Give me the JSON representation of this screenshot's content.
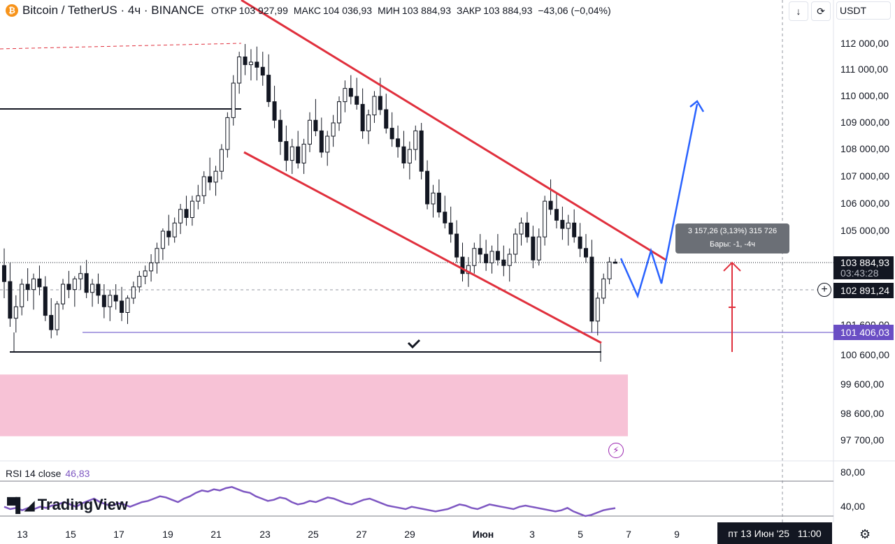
{
  "header": {
    "title": "Bitcoin / TetherUS · 4ч · BINANCE",
    "open_label": "ОТКР",
    "open_value": "103 927,99",
    "high_label": "МАКС",
    "high_value": "104 036,93",
    "low_label": "МИН",
    "low_value": "103 884,93",
    "close_label": "ЗАКР",
    "close_value": "103 884,93",
    "change": "−43,06 (−0,04%)"
  },
  "toolbar": {
    "currency": "USDT"
  },
  "price_axis": {
    "labels": [
      "112 000,00",
      "111 000,00",
      "110 000,00",
      "109 000,00",
      "108 000,00",
      "107 000,00",
      "106 000,00",
      "105 000,00",
      "100 600,00",
      "99 600,00",
      "98 600,00",
      "97 700,00"
    ],
    "current_price": "103 884,93",
    "countdown": "03:43:28",
    "crosshair_price": "102 891,24",
    "level_price": "101 406,03",
    "level_hidden": "101 600,00"
  },
  "measure_tooltip": {
    "line1": "3 157,26 (3,13%) 315 726",
    "line2": "Бары: -1, -4ч"
  },
  "rsi": {
    "label": "RSI 14 close",
    "value": "46,83",
    "axis": [
      "80,00",
      "40,00"
    ]
  },
  "time_axis": {
    "labels": [
      "13",
      "15",
      "17",
      "19",
      "21",
      "23",
      "25",
      "27",
      "29",
      "Июн",
      "3",
      "5",
      "7",
      "9"
    ],
    "crosshair_date": "пт 13 Июн '25   11:00"
  },
  "brand": {
    "name": "TradingView"
  },
  "colors": {
    "up": "#131722",
    "down": "#131722",
    "channel": "#e0303d",
    "projection": "#2962ff",
    "zone": "#f7c2d6",
    "rsi": "#7e57c2",
    "level": "#5b45c6"
  },
  "chart_data": {
    "type": "candlestick",
    "symbol": "BTCUSDT",
    "timeframe": "4h",
    "ylim": [
      97500,
      112600
    ],
    "x_range": [
      "May 12",
      "Jun 10"
    ],
    "candles": [
      [
        103800,
        104400,
        102600,
        103200
      ],
      [
        103200,
        103900,
        101600,
        101900
      ],
      [
        101900,
        102700,
        101400,
        102300
      ],
      [
        102300,
        103300,
        102000,
        103100
      ],
      [
        103100,
        103700,
        102500,
        102900
      ],
      [
        102900,
        103500,
        102200,
        103300
      ],
      [
        103300,
        103800,
        102700,
        103000
      ],
      [
        103000,
        103400,
        101800,
        102000
      ],
      [
        102000,
        102600,
        101200,
        101500
      ],
      [
        101500,
        102500,
        101300,
        102400
      ],
      [
        102400,
        103300,
        102200,
        103100
      ],
      [
        103100,
        103600,
        102600,
        102900
      ],
      [
        102900,
        103400,
        102300,
        103300
      ],
      [
        103300,
        103800,
        102900,
        103500
      ],
      [
        103500,
        104000,
        102600,
        102800
      ],
      [
        102800,
        103300,
        102300,
        103100
      ],
      [
        103100,
        103500,
        102400,
        102700
      ],
      [
        102700,
        103100,
        101900,
        102300
      ],
      [
        102300,
        102900,
        101800,
        102700
      ],
      [
        102700,
        103100,
        102200,
        102500
      ],
      [
        102500,
        103000,
        101800,
        102100
      ],
      [
        102100,
        102700,
        101700,
        102600
      ],
      [
        102600,
        103200,
        102400,
        103000
      ],
      [
        103000,
        103600,
        102800,
        103400
      ],
      [
        103400,
        103800,
        103100,
        103600
      ],
      [
        103600,
        104200,
        103200,
        103900
      ],
      [
        103900,
        104600,
        103500,
        104400
      ],
      [
        104400,
        105100,
        104000,
        105000
      ],
      [
        105000,
        105600,
        104500,
        104800
      ],
      [
        104800,
        105500,
        104600,
        105300
      ],
      [
        105300,
        106000,
        104900,
        105800
      ],
      [
        105800,
        106300,
        105200,
        105500
      ],
      [
        105500,
        106300,
        105200,
        106100
      ],
      [
        106100,
        106700,
        105800,
        106300
      ],
      [
        106300,
        107200,
        106000,
        107000
      ],
      [
        107000,
        107700,
        106500,
        106800
      ],
      [
        106800,
        107400,
        106300,
        107200
      ],
      [
        107200,
        108200,
        106900,
        108000
      ],
      [
        108000,
        109400,
        107700,
        109200
      ],
      [
        109200,
        110800,
        108900,
        110500
      ],
      [
        110500,
        111700,
        110100,
        111500
      ],
      [
        111500,
        112000,
        110800,
        111200
      ],
      [
        111200,
        111800,
        110600,
        111300
      ],
      [
        111300,
        111900,
        110600,
        111100
      ],
      [
        111100,
        111700,
        110400,
        110800
      ],
      [
        110800,
        111600,
        109600,
        109800
      ],
      [
        109800,
        110400,
        108800,
        109100
      ],
      [
        109100,
        109500,
        107800,
        108300
      ],
      [
        108300,
        108900,
        107200,
        107600
      ],
      [
        107600,
        108400,
        107100,
        108100
      ],
      [
        108100,
        108700,
        107300,
        107500
      ],
      [
        107500,
        108400,
        107100,
        108200
      ],
      [
        108200,
        109400,
        107900,
        109100
      ],
      [
        109100,
        109900,
        108500,
        108700
      ],
      [
        108700,
        109200,
        107700,
        107900
      ],
      [
        107900,
        108700,
        107400,
        108500
      ],
      [
        108500,
        109300,
        108100,
        109000
      ],
      [
        109000,
        110000,
        108700,
        109800
      ],
      [
        109800,
        110600,
        109400,
        110300
      ],
      [
        110300,
        110800,
        109700,
        110000
      ],
      [
        110000,
        110700,
        109500,
        109700
      ],
      [
        109700,
        110300,
        108400,
        108700
      ],
      [
        108700,
        109500,
        108200,
        109300
      ],
      [
        109300,
        110200,
        109000,
        110000
      ],
      [
        110000,
        110700,
        109300,
        109500
      ],
      [
        109500,
        110100,
        108600,
        108800
      ],
      [
        108800,
        109400,
        108100,
        108400
      ],
      [
        108400,
        108900,
        107700,
        108100
      ],
      [
        108100,
        108700,
        107300,
        107500
      ],
      [
        107500,
        108300,
        106900,
        108000
      ],
      [
        108000,
        108900,
        107600,
        108700
      ],
      [
        108700,
        109000,
        106900,
        107200
      ],
      [
        107200,
        107600,
        105800,
        106000
      ],
      [
        106000,
        106700,
        105500,
        106400
      ],
      [
        106400,
        106900,
        105500,
        105700
      ],
      [
        105700,
        106300,
        105100,
        105300
      ],
      [
        105300,
        105900,
        104600,
        104900
      ],
      [
        104900,
        105400,
        103900,
        104100
      ],
      [
        104100,
        104600,
        103200,
        103500
      ],
      [
        103500,
        104100,
        103000,
        103800
      ],
      [
        103800,
        104600,
        103500,
        104400
      ],
      [
        104400,
        104900,
        103900,
        104200
      ],
      [
        104200,
        104700,
        103600,
        103900
      ],
      [
        103900,
        104500,
        103500,
        104300
      ],
      [
        104300,
        104900,
        103800,
        104000
      ],
      [
        104000,
        104500,
        103400,
        103800
      ],
      [
        103800,
        104400,
        103200,
        104200
      ],
      [
        104200,
        105100,
        103900,
        104900
      ],
      [
        104900,
        105500,
        104500,
        105300
      ],
      [
        105300,
        105700,
        104600,
        104800
      ],
      [
        104800,
        105200,
        103700,
        104000
      ],
      [
        104000,
        105100,
        103800,
        104800
      ],
      [
        104800,
        106300,
        104500,
        106100
      ],
      [
        106100,
        106900,
        105600,
        105800
      ],
      [
        105800,
        106400,
        105100,
        105400
      ],
      [
        105400,
        105900,
        104700,
        105100
      ],
      [
        105100,
        105600,
        104500,
        105300
      ],
      [
        105300,
        105800,
        104600,
        104800
      ],
      [
        104800,
        105300,
        104100,
        104400
      ],
      [
        104400,
        104900,
        103900,
        104100
      ],
      [
        104100,
        104700,
        101400,
        101800
      ],
      [
        101800,
        102800,
        101300,
        102600
      ],
      [
        102600,
        103500,
        102400,
        103300
      ],
      [
        103300,
        104100,
        103100,
        103928
      ],
      [
        103928,
        104037,
        103885,
        103885
      ]
    ],
    "channel_upper": [
      {
        "x": "May 21",
        "y": 113000
      },
      {
        "x": "Jun 7",
        "y": 104300
      }
    ],
    "channel_lower": [
      {
        "x": "May 21",
        "y": 108400
      },
      {
        "x": "Jun 5",
        "y": 100850
      }
    ],
    "horizontal_levels": [
      109500,
      100600,
      101406
    ],
    "demand_zone": [
      97850,
      99950
    ],
    "projection": [
      103885,
      102700,
      104300,
      103100,
      109700
    ],
    "rsi_values": [
      48,
      46,
      47,
      45,
      47,
      46,
      48,
      47,
      49,
      50,
      52,
      50,
      48,
      51,
      53,
      55,
      52,
      50,
      49,
      51,
      50,
      48,
      50,
      52,
      53,
      55,
      57,
      56,
      54,
      52,
      55,
      57,
      60,
      62,
      61,
      63,
      62,
      64,
      65,
      63,
      61,
      60,
      57,
      55,
      53,
      54,
      56,
      55,
      52,
      50,
      51,
      53,
      52,
      54,
      56,
      55,
      53,
      51,
      50,
      52,
      54,
      55,
      53,
      51,
      49,
      48,
      47,
      46,
      48,
      47,
      46,
      45,
      44,
      45,
      46,
      48,
      50,
      49,
      47,
      46,
      48,
      50,
      49,
      48,
      47,
      46,
      48,
      49,
      48,
      47,
      46,
      45,
      44,
      45,
      47,
      44,
      42,
      40,
      41,
      43,
      45,
      46,
      46.83
    ]
  }
}
